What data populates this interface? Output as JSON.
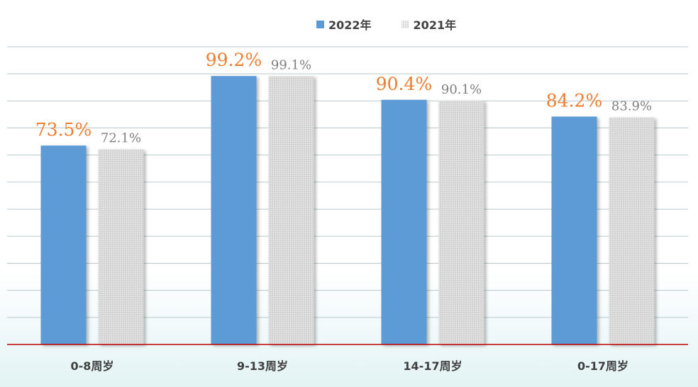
{
  "chart_data": {
    "type": "bar",
    "categories": [
      "0-8周岁",
      "9-13周岁",
      "14-17周岁",
      "0-17周岁"
    ],
    "series": [
      {
        "name": "2022年",
        "values": [
          73.5,
          99.2,
          90.4,
          84.2
        ],
        "labels": [
          "73.5%",
          "99.2%",
          "90.4%",
          "84.2%"
        ],
        "color": "#5b9bd5",
        "label_color": "#ed7d31"
      },
      {
        "name": "2021年",
        "values": [
          72.1,
          99.1,
          90.1,
          83.9
        ],
        "labels": [
          "72.1%",
          "99.1%",
          "90.1%",
          "83.9%"
        ],
        "color": "#d9d9d9",
        "label_color": "#7f7f7f"
      }
    ],
    "ylim": [
      0,
      110
    ],
    "grid": true,
    "legend": "top-center",
    "axis_color": "#c00000",
    "grid_color": "#b7c9cc"
  }
}
